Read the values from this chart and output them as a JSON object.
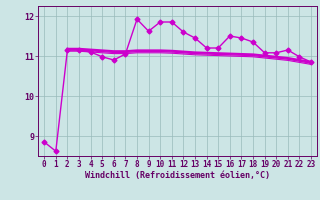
{
  "title": "",
  "xlabel": "Windchill (Refroidissement éolien,°C)",
  "ylabel": "",
  "bg_color": "#cce5e5",
  "line_color": "#cc00cc",
  "grid_color": "#99bbbb",
  "xlim": [
    -0.5,
    23.5
  ],
  "ylim": [
    8.5,
    12.25
  ],
  "yticks": [
    9,
    10,
    11,
    12
  ],
  "xticks": [
    0,
    1,
    2,
    3,
    4,
    5,
    6,
    7,
    8,
    9,
    10,
    11,
    12,
    13,
    14,
    15,
    16,
    17,
    18,
    19,
    20,
    21,
    22,
    23
  ],
  "series": [
    {
      "x": [
        0,
        1,
        2,
        3,
        4,
        5,
        6,
        7,
        8,
        9,
        10,
        11,
        12,
        13,
        14,
        15,
        16,
        17,
        18,
        19,
        20,
        21,
        22,
        23
      ],
      "y": [
        8.85,
        8.62,
        11.15,
        11.15,
        11.1,
        10.98,
        10.9,
        11.05,
        11.92,
        11.62,
        11.85,
        11.85,
        11.6,
        11.45,
        11.2,
        11.2,
        11.5,
        11.45,
        11.35,
        11.08,
        11.08,
        11.15,
        10.98,
        10.85
      ],
      "marker": "D",
      "markersize": 2.5,
      "linestyle": "-",
      "linewidth": 1.0,
      "zorder": 5
    },
    {
      "x": [
        2,
        3,
        4,
        5,
        6,
        7,
        8,
        9,
        10,
        11,
        12,
        13,
        14,
        15,
        16,
        17,
        18,
        19,
        20,
        21,
        22,
        23
      ],
      "y": [
        11.18,
        11.18,
        11.16,
        11.14,
        11.12,
        11.12,
        11.14,
        11.14,
        11.14,
        11.13,
        11.11,
        11.09,
        11.08,
        11.07,
        11.06,
        11.05,
        11.04,
        11.01,
        10.98,
        10.95,
        10.9,
        10.85
      ],
      "marker": "",
      "markersize": 0,
      "linestyle": "-",
      "linewidth": 1.5,
      "zorder": 3
    },
    {
      "x": [
        2,
        3,
        4,
        5,
        6,
        7,
        8,
        9,
        10,
        11,
        12,
        13,
        14,
        15,
        16,
        17,
        18,
        19,
        20,
        21,
        22,
        23
      ],
      "y": [
        11.15,
        11.15,
        11.13,
        11.11,
        11.09,
        11.09,
        11.11,
        11.11,
        11.11,
        11.1,
        11.08,
        11.06,
        11.05,
        11.04,
        11.03,
        11.02,
        11.01,
        10.98,
        10.95,
        10.92,
        10.87,
        10.82
      ],
      "marker": "",
      "markersize": 0,
      "linestyle": "-",
      "linewidth": 1.0,
      "zorder": 2
    },
    {
      "x": [
        2,
        3,
        4,
        5,
        6,
        7,
        8,
        9,
        10,
        11,
        12,
        13,
        14,
        15,
        16,
        17,
        18,
        19,
        20,
        21,
        22,
        23
      ],
      "y": [
        11.12,
        11.12,
        11.1,
        11.08,
        11.06,
        11.06,
        11.08,
        11.08,
        11.08,
        11.07,
        11.05,
        11.03,
        11.02,
        11.01,
        11.0,
        10.99,
        10.98,
        10.95,
        10.92,
        10.89,
        10.84,
        10.79
      ],
      "marker": "",
      "markersize": 0,
      "linestyle": "-",
      "linewidth": 0.8,
      "zorder": 2
    }
  ],
  "tick_fontsize": 5.5,
  "xlabel_fontsize": 6.0,
  "tick_color": "#660066",
  "spine_color": "#660066"
}
